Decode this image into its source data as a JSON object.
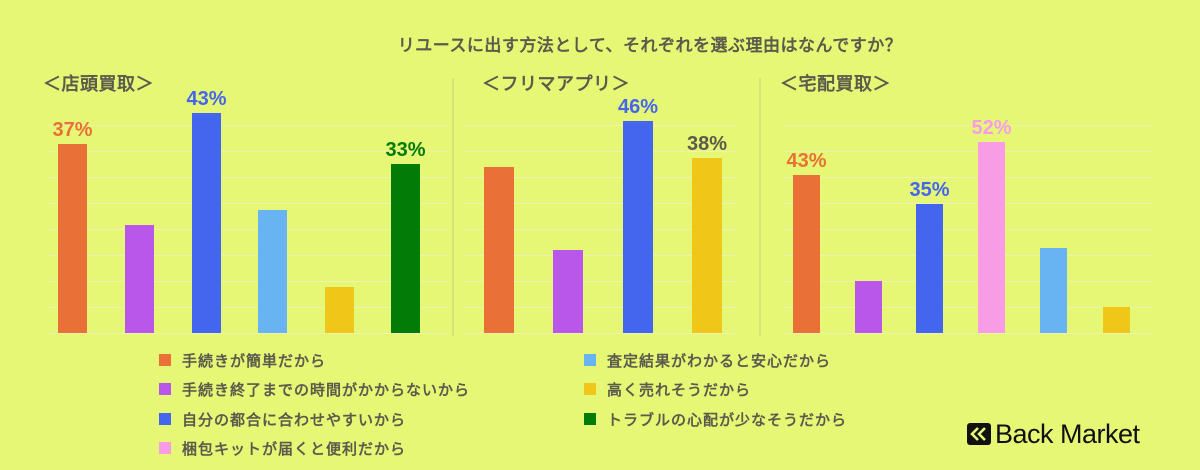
{
  "title": "リユースに出す方法として、それぞれを選ぶ理由はなんですか？",
  "colors": {
    "background": "#e5f775",
    "easy_procedure": "#e97036",
    "short_time": "#b857ea",
    "own_schedule": "#4466ee",
    "kit_delivered": "#f89ce6",
    "know_result": "#68b4f2",
    "sell_high": "#f0c619",
    "few_trouble": "#037c07",
    "text": "#5b5b4c"
  },
  "panels": [
    {
      "header": "＜店頭買取＞"
    },
    {
      "header": "＜フリマアプリ＞"
    },
    {
      "header": "＜宅配買取＞"
    }
  ],
  "legend": [
    {
      "label": "手続きが簡単だから",
      "color": "#e97036"
    },
    {
      "label": "手続き終了までの時間がかからないから",
      "color": "#b857ea"
    },
    {
      "label": "自分の都合に合わせやすいから",
      "color": "#4466ee"
    },
    {
      "label": "梱包キットが届くと便利だから",
      "color": "#f89ce6"
    },
    {
      "label": "査定結果がわかると安心だから",
      "color": "#68b4f2"
    },
    {
      "label": "高く売れそうだから",
      "color": "#f0c619"
    },
    {
      "label": "トラブルの心配が少なそうだから",
      "color": "#037c07"
    }
  ],
  "logo": {
    "text": "Back Market"
  },
  "chart_data": [
    {
      "type": "bar",
      "title": "＜店頭買取＞",
      "categories": [
        "手続きが簡単だから",
        "手続き終了までの時間がかからないから",
        "自分の都合に合わせやすいから",
        "査定結果がわかると安心だから",
        "高く売れそうだから",
        "トラブルの心配が少なそうだから"
      ],
      "values": [
        37,
        21,
        43,
        24,
        9,
        33
      ],
      "labels": [
        "37%",
        "",
        "43%",
        "",
        "",
        "33%"
      ],
      "colors": [
        "#e97036",
        "#b857ea",
        "#4466ee",
        "#68b4f2",
        "#f0c619",
        "#037c07"
      ],
      "ylabel": "%",
      "grid": true
    },
    {
      "type": "bar",
      "title": "＜フリマアプリ＞",
      "categories": [
        "手続きが簡単だから",
        "手続き終了までの時間がかからないから",
        "自分の都合に合わせやすいから",
        "高く売れそうだから"
      ],
      "values": [
        36,
        18,
        46,
        38
      ],
      "labels": [
        "",
        "",
        "46%",
        "38%"
      ],
      "colors": [
        "#e97036",
        "#b857ea",
        "#4466ee",
        "#f0c619"
      ],
      "ylabel": "%",
      "grid": true
    },
    {
      "type": "bar",
      "title": "＜宅配買取＞",
      "categories": [
        "手続きが簡単だから",
        "手続き終了までの時間がかからないから",
        "自分の都合に合わせやすいから",
        "梱包キットが届くと便利だから",
        "査定結果がわかると安心だから",
        "高く売れそうだから"
      ],
      "values": [
        43,
        14,
        35,
        52,
        23,
        7
      ],
      "labels": [
        "43%",
        "",
        "35%",
        "52%",
        "",
        ""
      ],
      "colors": [
        "#e97036",
        "#b857ea",
        "#4466ee",
        "#f89ce6",
        "#68b4f2",
        "#f0c619"
      ],
      "ylabel": "%",
      "grid": true
    }
  ]
}
